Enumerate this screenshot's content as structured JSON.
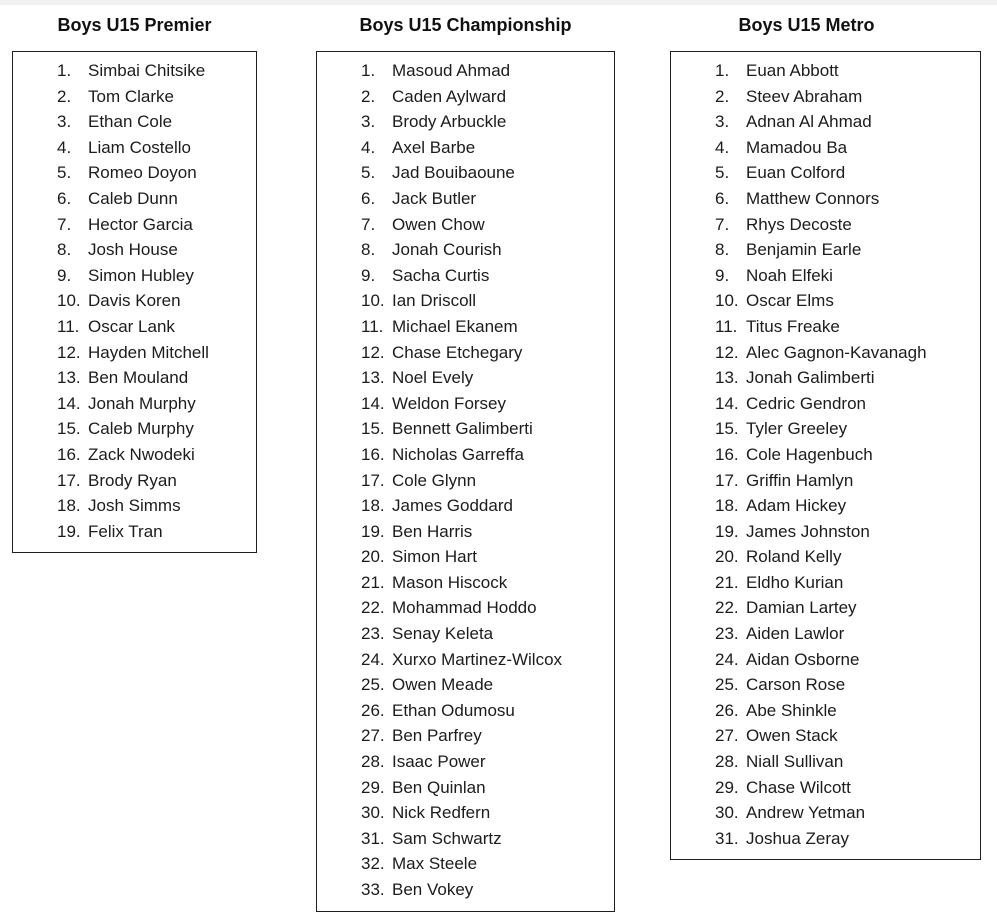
{
  "page": {
    "background": "#ffffff",
    "top_strip_color": "#f1f1f1",
    "text_color": "#1c1c1c",
    "border_color": "#1f1f1f"
  },
  "columns": [
    {
      "title": "Boys U15 Premier",
      "players": [
        "Simbai Chitsike",
        "Tom Clarke",
        "Ethan Cole",
        "Liam Costello",
        "Romeo Doyon",
        "Caleb Dunn",
        "Hector Garcia",
        "Josh House",
        "Simon Hubley",
        "Davis Koren",
        "Oscar Lank",
        "Hayden Mitchell",
        "Ben Mouland",
        "Jonah Murphy",
        "Caleb Murphy",
        "Zack Nwodeki",
        "Brody Ryan",
        "Josh Simms",
        "Felix Tran"
      ]
    },
    {
      "title": "Boys U15 Championship",
      "players": [
        "Masoud Ahmad",
        "Caden Aylward",
        "Brody Arbuckle",
        "Axel Barbe",
        "Jad Bouibaoune",
        "Jack Butler",
        "Owen Chow",
        "Jonah Courish",
        "Sacha Curtis",
        "Ian Driscoll",
        "Michael Ekanem",
        "Chase Etchegary",
        "Noel Evely",
        "Weldon Forsey",
        "Bennett Galimberti",
        "Nicholas Garreffa",
        "Cole Glynn",
        "James Goddard",
        "Ben Harris",
        "Simon Hart",
        "Mason Hiscock",
        "Mohammad Hoddo",
        "Senay Keleta",
        "Xurxo Martinez-Wilcox",
        "Owen Meade",
        "Ethan Odumosu",
        "Ben Parfrey",
        "Isaac Power",
        "Ben Quinlan",
        "Nick Redfern",
        "Sam Schwartz",
        "Max Steele",
        "Ben Vokey"
      ]
    },
    {
      "title": "Boys U15 Metro",
      "players": [
        "Euan Abbott",
        "Steev Abraham",
        "Adnan Al Ahmad",
        "Mamadou Ba",
        "Euan Colford",
        "Matthew Connors",
        "Rhys Decoste",
        "Benjamin Earle",
        "Noah Elfeki",
        "Oscar Elms",
        "Titus Freake",
        "Alec Gagnon-Kavanagh",
        "Jonah Galimberti",
        "Cedric Gendron",
        "Tyler Greeley",
        "Cole Hagenbuch",
        "Griffin Hamlyn",
        "Adam Hickey",
        "James Johnston",
        "Roland Kelly",
        "Eldho Kurian",
        "Damian Lartey",
        "Aiden Lawlor",
        "Aidan Osborne",
        "Carson Rose",
        "Abe Shinkle",
        "Owen Stack",
        "Niall Sullivan",
        "Chase Wilcott",
        "Andrew Yetman",
        "Joshua Zeray"
      ]
    }
  ]
}
